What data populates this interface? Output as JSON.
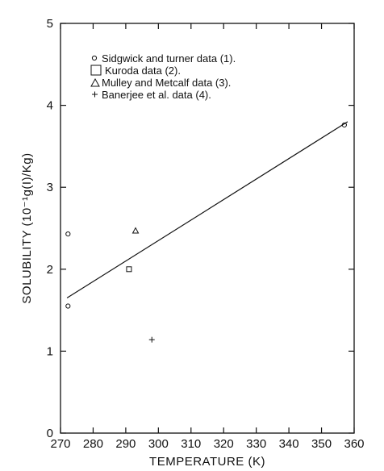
{
  "chart_data": {
    "type": "scatter",
    "xlabel": "TEMPERATURE (K)",
    "ylabel": "SOLUBILITY (10⁻¹g(I)/Kg)",
    "xlim": [
      270,
      360
    ],
    "ylim": [
      0,
      5
    ],
    "x_ticks": [
      "270",
      "280",
      "290",
      "300",
      "310",
      "320",
      "330",
      "340",
      "350",
      "360"
    ],
    "y_ticks": [
      "0",
      "1",
      "2",
      "3",
      "4",
      "5"
    ],
    "grid": false,
    "legend_position": "top-left",
    "series": [
      {
        "name": "Sidgwick and turner data (1).",
        "marker": "circle",
        "points": [
          {
            "x": 272.3,
            "y": 2.43
          },
          {
            "x": 272.3,
            "y": 1.55
          },
          {
            "x": 357,
            "y": 3.76
          }
        ]
      },
      {
        "name": "Kuroda data (2).",
        "marker": "square",
        "points": [
          {
            "x": 291,
            "y": 2.0
          }
        ]
      },
      {
        "name": "Mulley and Metcalf data (3).",
        "marker": "triangle",
        "points": [
          {
            "x": 293,
            "y": 2.47
          }
        ]
      },
      {
        "name": "Banerjee et al. data (4).",
        "marker": "plus",
        "points": [
          {
            "x": 298,
            "y": 1.14
          }
        ]
      }
    ],
    "fit_line": {
      "x": [
        272,
        358
      ],
      "y": [
        1.65,
        3.8
      ]
    }
  }
}
